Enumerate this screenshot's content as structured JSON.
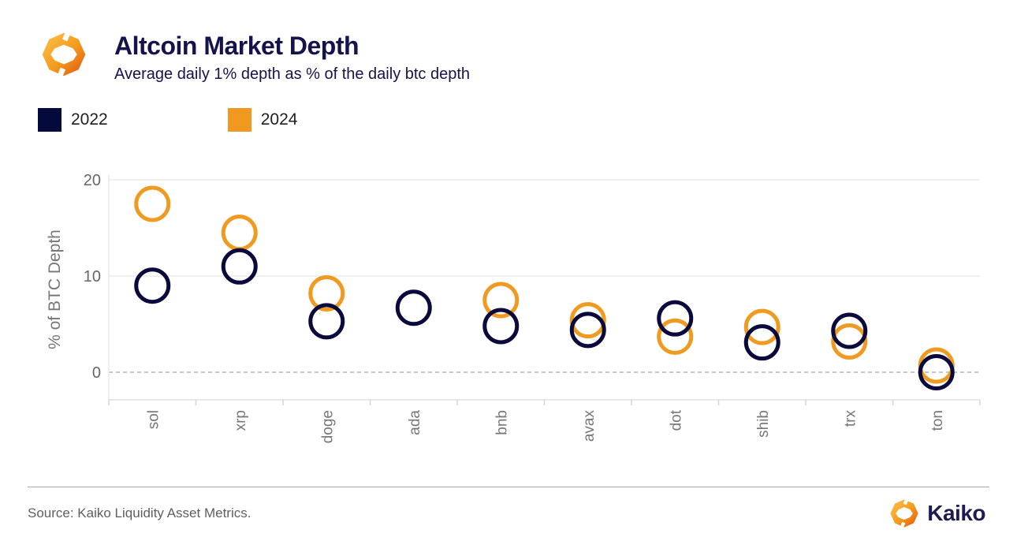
{
  "header": {
    "title": "Altcoin Market Depth",
    "subtitle": "Average daily 1% depth as % of the daily btc depth"
  },
  "legend": [
    {
      "label": "2022",
      "color": "#050a3c"
    },
    {
      "label": "2024",
      "color": "#f0981f"
    }
  ],
  "chart_data": {
    "type": "scatter",
    "title": "Altcoin Market Depth",
    "subtitle": "Average daily 1% depth as % of the daily btc depth",
    "categories": [
      "sol",
      "xrp",
      "doge",
      "ada",
      "bnb",
      "avax",
      "dot",
      "shib",
      "trx",
      "ton"
    ],
    "series": [
      {
        "name": "2022",
        "color": "#0a0a3c",
        "values": [
          9,
          11,
          5.3,
          6.7,
          4.8,
          4.4,
          5.6,
          3.1,
          4.3,
          0
        ]
      },
      {
        "name": "2024",
        "color": "#ef9b22",
        "values": [
          17.5,
          14.5,
          8.2,
          null,
          7.5,
          5.4,
          3.7,
          4.7,
          3.2,
          0.7
        ]
      }
    ],
    "xlabel": "",
    "ylabel": "% of BTC Depth",
    "yticks": [
      0,
      10,
      20
    ],
    "ylim": [
      -2,
      21
    ],
    "grid": "horizontal",
    "zero_line": "dashed",
    "legend_position": "top-left",
    "marker": "open-circle"
  },
  "footer": {
    "source": "Source: Kaiko Liquidity Asset Metrics.",
    "brand": "Kaiko"
  }
}
